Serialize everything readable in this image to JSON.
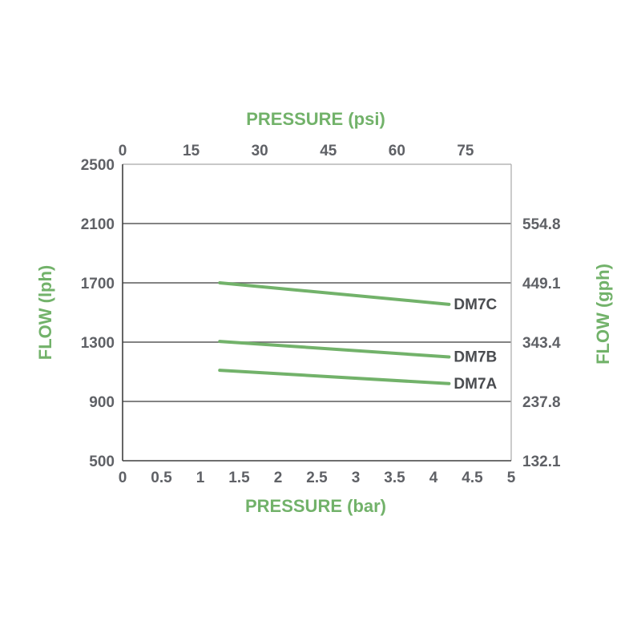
{
  "chart_data": {
    "type": "line",
    "title": "",
    "top_axis": {
      "label": "PRESSURE (psi)",
      "range": [
        0,
        85
      ],
      "ticks": [
        0,
        15,
        30,
        45,
        60,
        75
      ]
    },
    "bottom_axis": {
      "label": "PRESSURE (bar)",
      "range": [
        0,
        5
      ],
      "ticks": [
        "0",
        "0.5",
        "1",
        "1.5",
        "2",
        "2.5",
        "3",
        "3.5",
        "4",
        "4.5",
        "5"
      ]
    },
    "left_axis": {
      "label": "FLOW (lph)",
      "range": [
        500,
        2500
      ],
      "ticks": [
        500,
        900,
        1300,
        1700,
        2100,
        2500
      ]
    },
    "right_axis": {
      "label": "FLOW (gph)",
      "ticks": [
        "132.1",
        "237.8",
        "343.4",
        "449.1",
        "554.8"
      ]
    },
    "grid": "horizontal",
    "series": [
      {
        "name": "DM7C",
        "x": [
          1.25,
          4.2
        ],
        "y": [
          1700,
          1555
        ]
      },
      {
        "name": "DM7B",
        "x": [
          1.25,
          4.2
        ],
        "y": [
          1305,
          1200
        ]
      },
      {
        "name": "DM7A",
        "x": [
          1.25,
          4.2
        ],
        "y": [
          1110,
          1020
        ]
      }
    ],
    "colors": {
      "line": "#72b26a",
      "axis_title": "#72b26a",
      "tick_text": "#5f6166",
      "grid": "#5a5a5a",
      "frame": "#b5b5b5"
    }
  }
}
